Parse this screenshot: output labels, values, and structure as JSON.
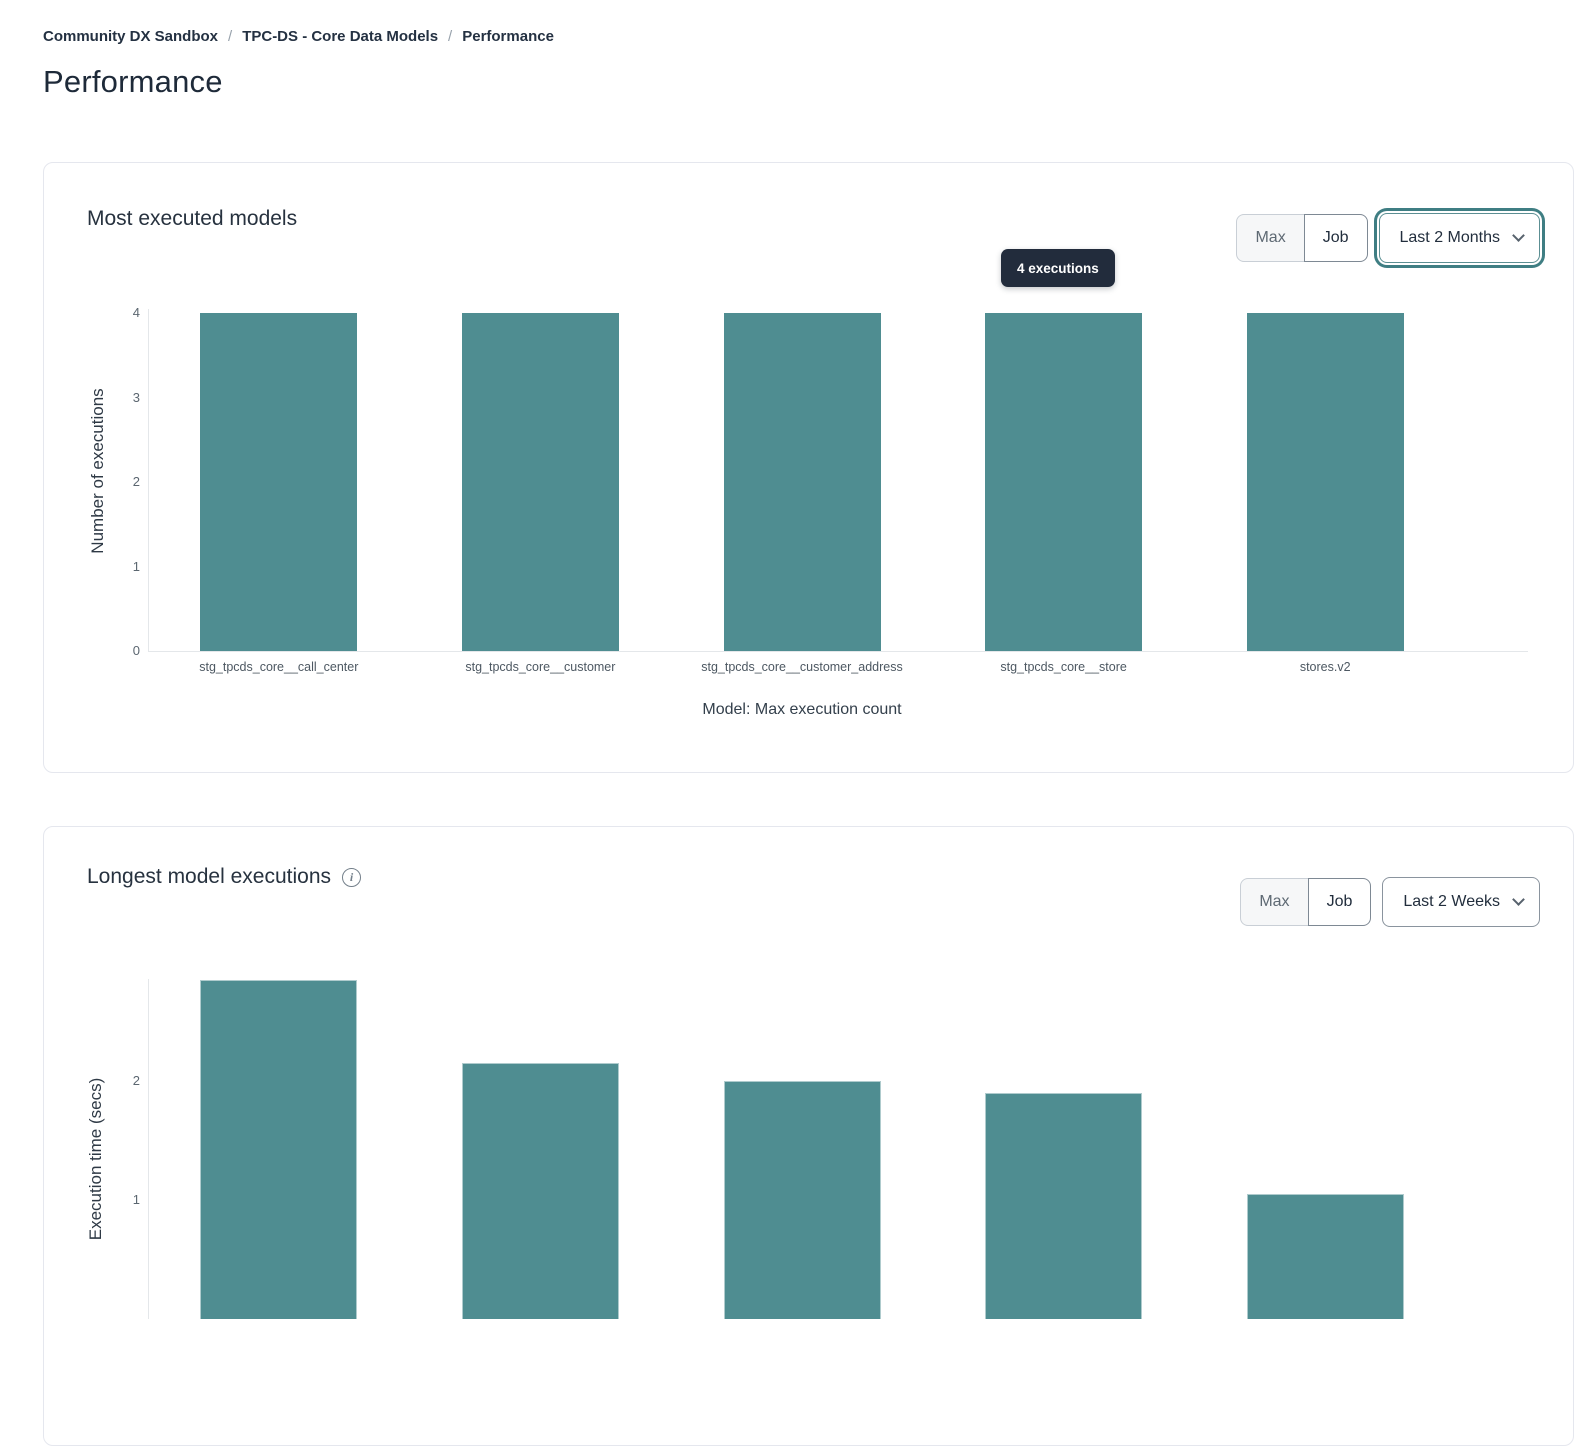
{
  "breadcrumb": {
    "separator": "/",
    "items": [
      "Community DX Sandbox",
      "TPC-DS - Core Data Models",
      "Performance"
    ]
  },
  "page": {
    "title": "Performance"
  },
  "cards": [
    {
      "title": "Most executed models",
      "toggle": {
        "options": [
          "Max",
          "Job"
        ],
        "selected": "Job"
      },
      "dropdown": {
        "value": "Last 2 Months",
        "focused": true
      },
      "tooltip": "4 executions"
    },
    {
      "title": "Longest model executions",
      "info_icon": "i",
      "toggle": {
        "options": [
          "Max",
          "Job"
        ],
        "selected": "Job"
      },
      "dropdown": {
        "value": "Last 2 Weeks",
        "focused": false
      }
    }
  ],
  "colors": {
    "bar_teal": "#4f8d91",
    "focus_ring_teal": "#3f7e83",
    "tooltip_bg": "#222c3c",
    "text_dark": "#232f3e"
  },
  "chart_data": [
    {
      "type": "bar",
      "title": "Most executed models",
      "categories": [
        "stg_tpcds_core__call_center",
        "stg_tpcds_core__customer",
        "stg_tpcds_core__customer_address",
        "stg_tpcds_core__store",
        "stores.v2"
      ],
      "values": [
        4,
        4,
        4,
        4,
        4
      ],
      "xlabel": "Model: Max execution count",
      "ylabel": "Number of executions",
      "ylim": [
        0,
        4
      ],
      "yticks": [
        0,
        1,
        2,
        3,
        4
      ],
      "grid": false,
      "legend": false,
      "bar_color": "#4f8d91",
      "tooltip": {
        "text": "4 executions",
        "bar_index": 3
      }
    },
    {
      "type": "bar",
      "title": "Longest model executions",
      "categories": [],
      "values": [
        2.85,
        2.15,
        2.0,
        1.9,
        1.05
      ],
      "xlabel": "",
      "ylabel": "Execution time (secs)",
      "ylim": [
        0,
        3
      ],
      "yticks": [
        1,
        2
      ],
      "grid": false,
      "legend": false,
      "bar_color": "#4f8d91",
      "note": "bottom of chart (x-axis labels) cut off by viewport"
    }
  ]
}
